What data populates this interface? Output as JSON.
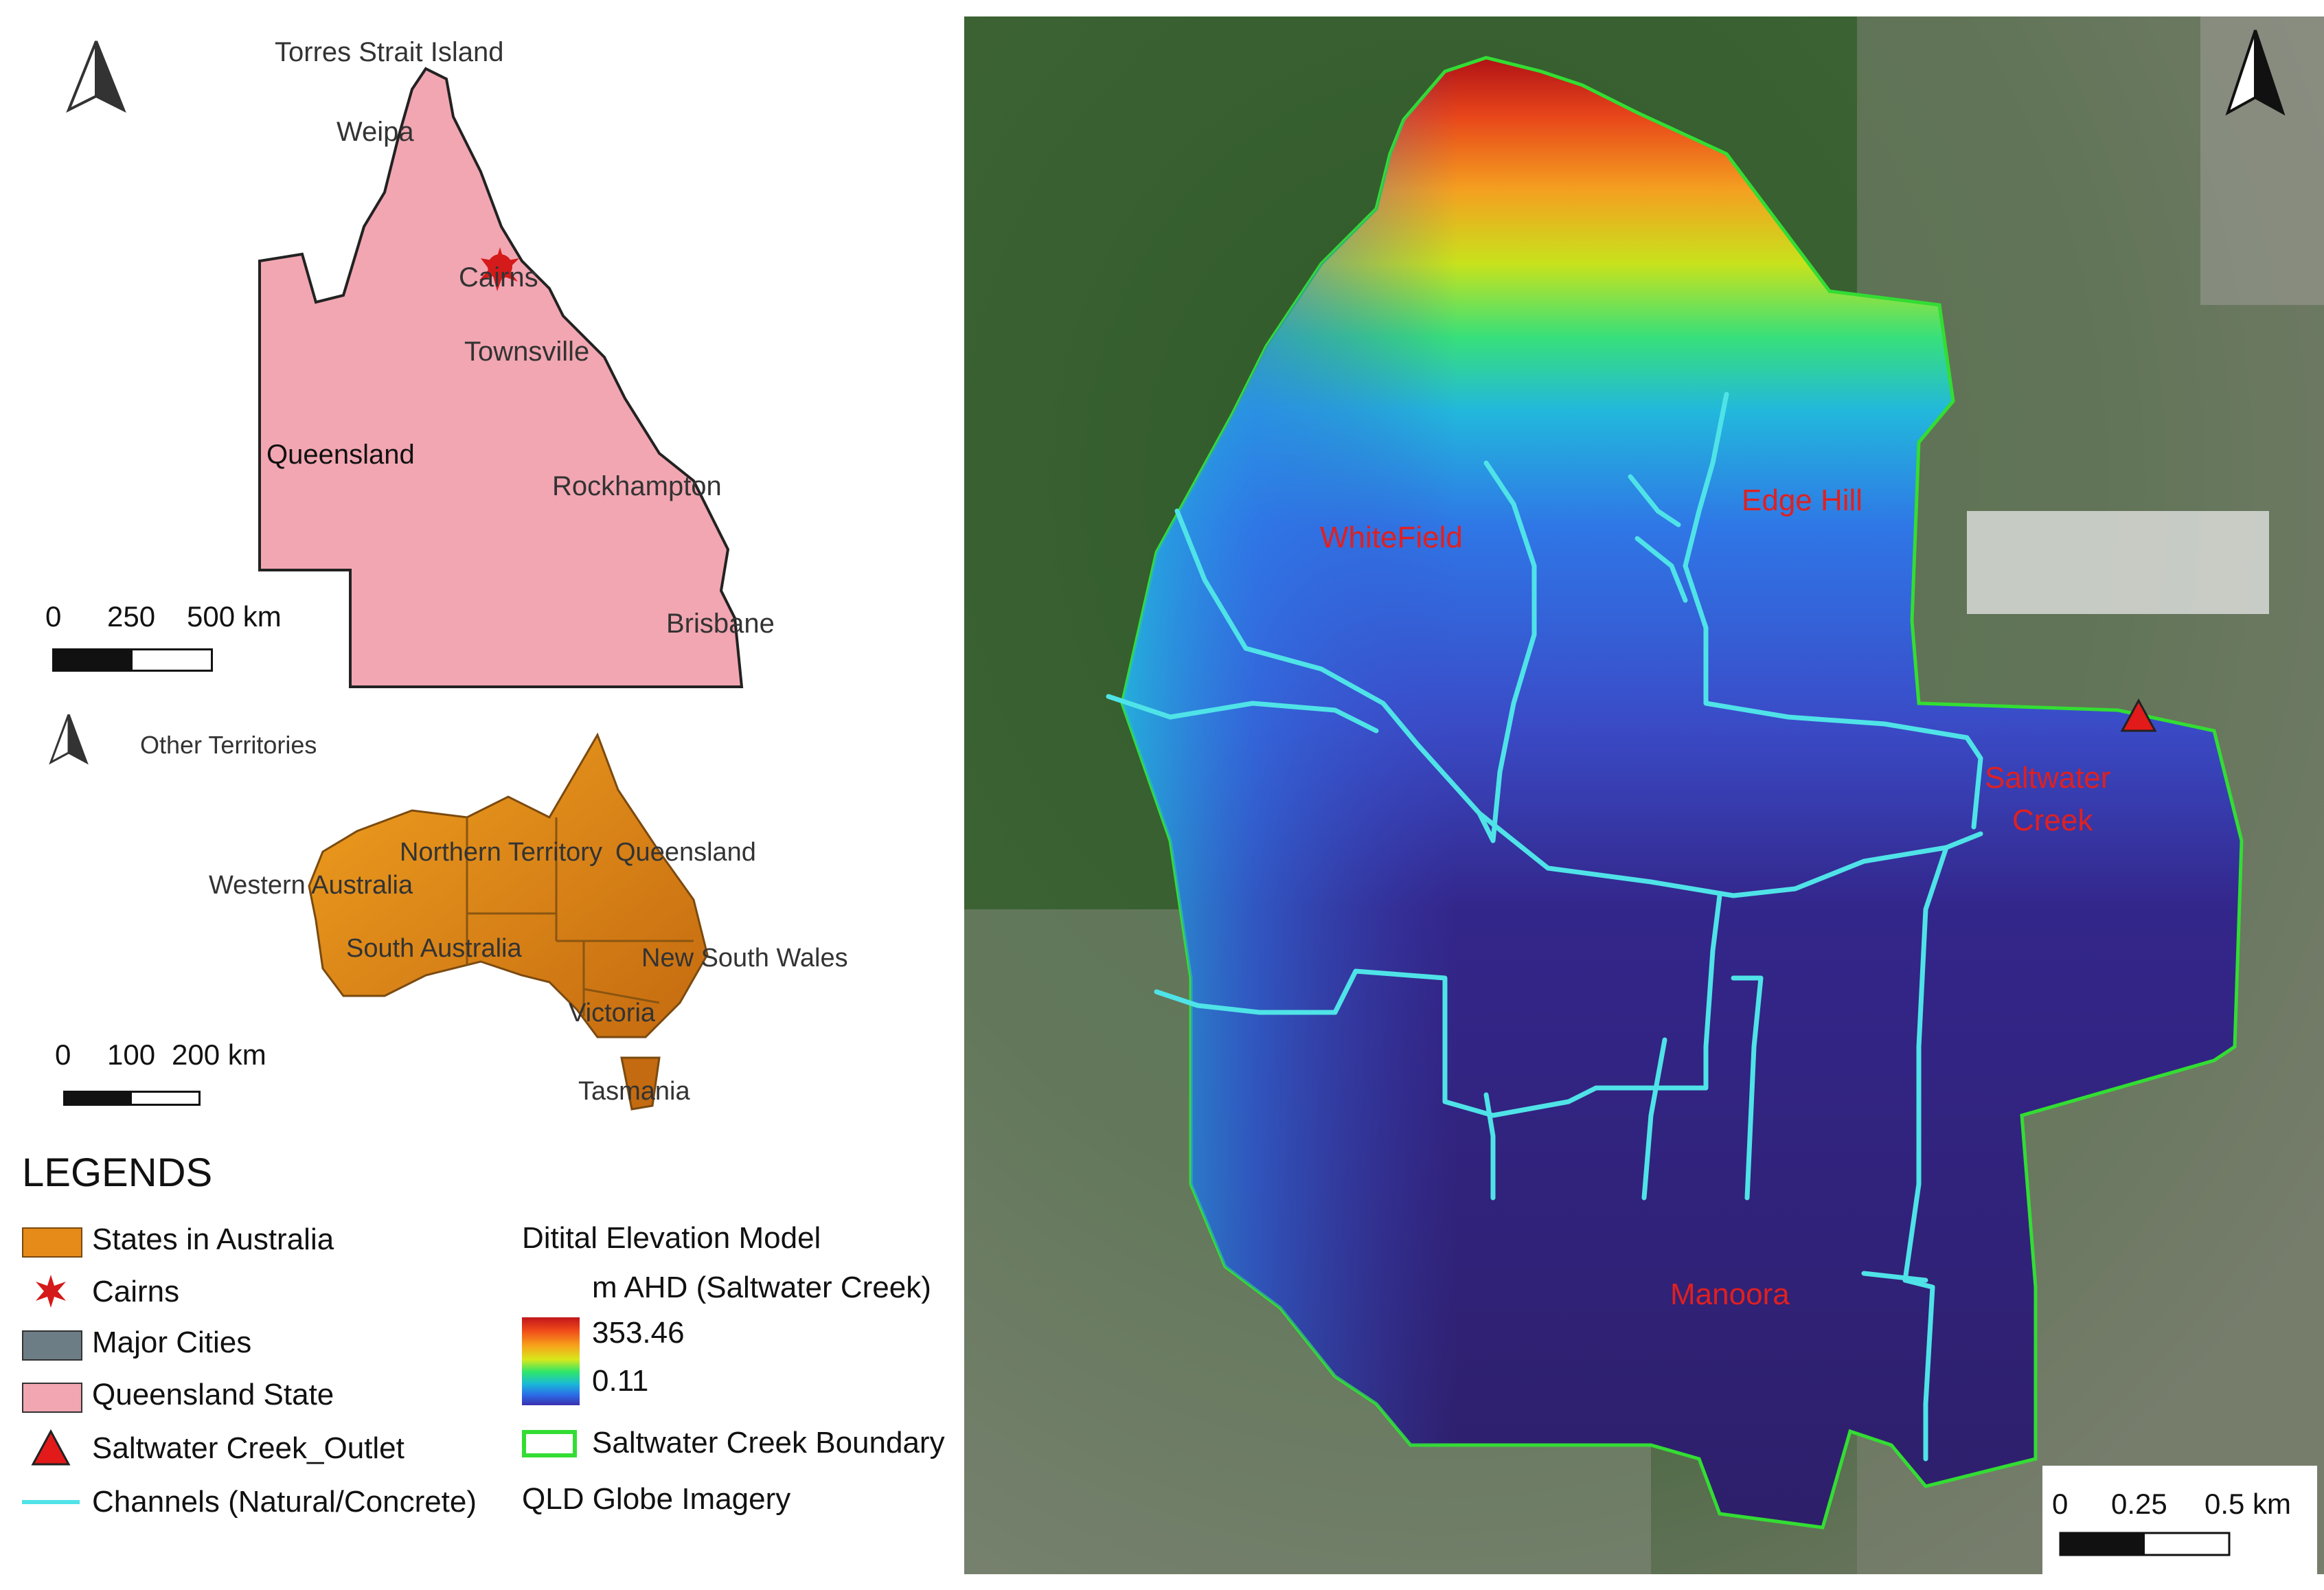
{
  "qld_inset": {
    "state_label": "Queensland",
    "places": [
      "Torres Strait Island",
      "Weipa",
      "Cairns",
      "Townsville",
      "Rockhampton",
      "Brisbane"
    ],
    "scale": {
      "ticks": [
        "0",
        "250",
        "500 km"
      ]
    }
  },
  "aus_inset": {
    "other_label": "Other Territories",
    "states": [
      "Northern Territory",
      "Queensland",
      "Western Australia",
      "South Australia",
      "New South Wales",
      "Victoria",
      "Tasmania"
    ],
    "scale": {
      "ticks": [
        "0",
        "100",
        "200 km"
      ]
    }
  },
  "main_map": {
    "suburbs": [
      "WhiteField",
      "Edge Hill",
      "Saltwater",
      "Creek",
      "Manoora"
    ],
    "scale": {
      "ticks": [
        "0",
        "0.25",
        "0.5 km"
      ]
    }
  },
  "legend": {
    "title": "LEGENDS",
    "items": [
      {
        "label": "States in Australia",
        "symbol": "orange-box"
      },
      {
        "label": "Cairns",
        "symbol": "red-star-icon"
      },
      {
        "label": "Major Cities",
        "symbol": "gray-box"
      },
      {
        "label": "Queensland State",
        "symbol": "pink-box"
      },
      {
        "label": "Saltwater Creek_Outlet",
        "symbol": "red-triangle-icon"
      },
      {
        "label": "Channels (Natural/Concrete)",
        "symbol": "cyan-line"
      }
    ],
    "dem_title": "Ditital Elevation Model",
    "dem_unit": "m AHD (Saltwater Creek)",
    "dem_max": "353.46",
    "dem_min": "0.11",
    "boundary_label": "Saltwater Creek Boundary",
    "imagery_label": "QLD Globe Imagery"
  },
  "colors": {
    "queensland": "#f2a6b2",
    "australia": "#e68a1a",
    "channel": "#4fe3e8",
    "boundary": "#33dd33",
    "outlet": "#e31a1a",
    "label_red": "#e02020",
    "satellite": "#5b6b4c"
  }
}
